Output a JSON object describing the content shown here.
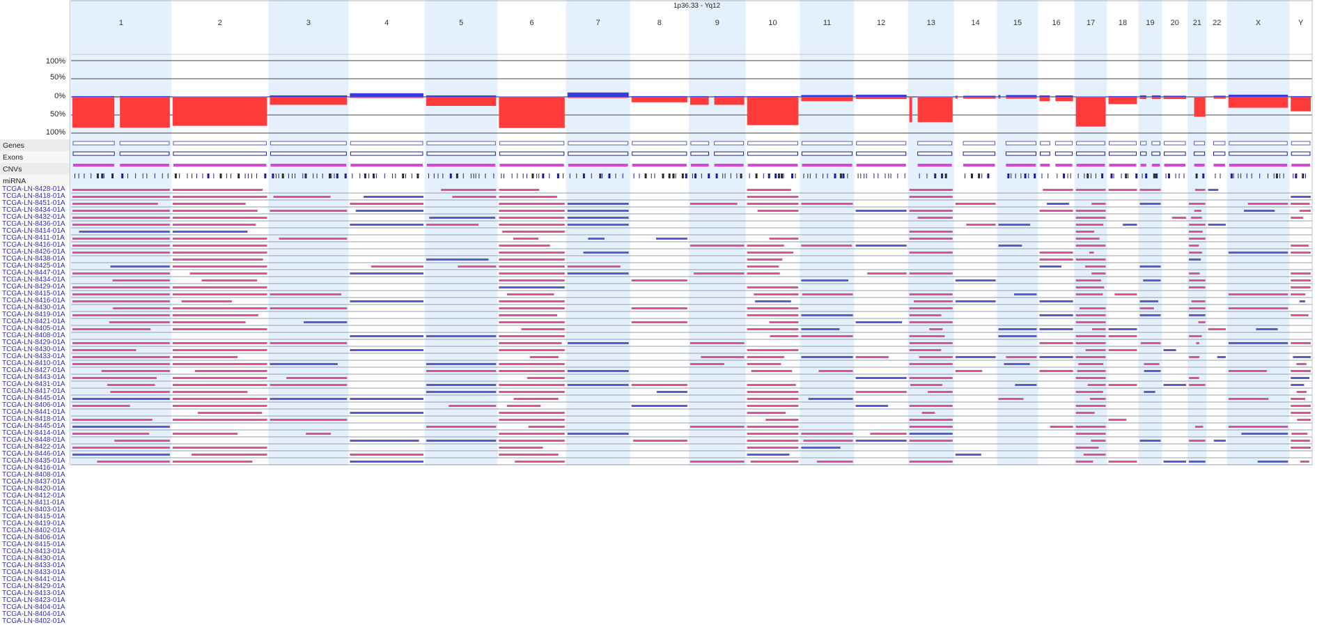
{
  "region_label": "1p36.33 - Yq12",
  "percent_ticks": [
    "100%",
    "50%",
    "0%",
    "50%",
    "100%"
  ],
  "tracks": [
    "Genes",
    "Exons",
    "CNVs",
    "miRNA"
  ],
  "chromosomes": [
    {
      "name": "1",
      "frac": 0.0808,
      "gain": 0.02,
      "loss": 0.85,
      "gap": 0.46
    },
    {
      "name": "2",
      "frac": 0.0784,
      "gain": 0.01,
      "loss": 0.8,
      "gap": null
    },
    {
      "name": "3",
      "frac": 0.0645,
      "gain": 0.04,
      "loss": 0.22,
      "gap": null
    },
    {
      "name": "4",
      "frac": 0.0616,
      "gain": 0.1,
      "loss": 0.03,
      "gap": null
    },
    {
      "name": "5",
      "frac": 0.0586,
      "gain": 0.04,
      "loss": 0.25,
      "gap": null
    },
    {
      "name": "6",
      "frac": 0.0553,
      "gain": 0.01,
      "loss": 0.86,
      "gap": null
    },
    {
      "name": "7",
      "frac": 0.0516,
      "gain": 0.12,
      "loss": 0.03,
      "gap": null
    },
    {
      "name": "8",
      "frac": 0.0473,
      "gain": 0.02,
      "loss": 0.15,
      "gap": null
    },
    {
      "name": "9",
      "frac": 0.0459,
      "gain": 0.02,
      "loss": 0.22,
      "gap": 0.4
    },
    {
      "name": "10",
      "frac": 0.0437,
      "gain": 0.02,
      "loss": 0.78,
      "gap": null
    },
    {
      "name": "11",
      "frac": 0.0439,
      "gain": 0.05,
      "loss": 0.12,
      "gap": null
    },
    {
      "name": "12",
      "frac": 0.0433,
      "gain": 0.06,
      "loss": 0.06,
      "gap": null
    },
    {
      "name": "13",
      "frac": 0.0371,
      "gain": 0.01,
      "loss": 0.7,
      "gap": 0.15
    },
    {
      "name": "14",
      "frac": 0.0347,
      "gain": 0.03,
      "loss": 0.05,
      "gap": 0.15
    },
    {
      "name": "15",
      "frac": 0.0331,
      "gain": 0.05,
      "loss": 0.05,
      "gap": 0.15
    },
    {
      "name": "16",
      "frac": 0.0293,
      "gain": 0.04,
      "loss": 0.12,
      "gap": 0.4
    },
    {
      "name": "17",
      "frac": 0.0263,
      "gain": 0.01,
      "loss": 0.82,
      "gap": null
    },
    {
      "name": "18",
      "frac": 0.0253,
      "gain": 0.02,
      "loss": 0.2,
      "gap": null
    },
    {
      "name": "19",
      "frac": 0.0191,
      "gain": 0.04,
      "loss": 0.06,
      "gap": 0.45
    },
    {
      "name": "20",
      "frac": 0.0205,
      "gain": 0.03,
      "loss": 0.06,
      "gap": null
    },
    {
      "name": "21",
      "frac": 0.0155,
      "gain": 0.01,
      "loss": 0.55,
      "gap": 0.2
    },
    {
      "name": "22",
      "frac": 0.0164,
      "gain": 0.03,
      "loss": 0.05,
      "gap": 0.2
    },
    {
      "name": "X",
      "frac": 0.0502,
      "gain": 0.06,
      "loss": 0.3,
      "gap": null
    },
    {
      "name": "Y",
      "frac": 0.0184,
      "gain": 0.02,
      "loss": 0.4,
      "gap": null
    }
  ],
  "samples": [
    "TCGA-LN-8428-01A",
    "TCGA-LN-8418-01A",
    "TCGA-LN-8451-01A",
    "TCGA-LN-8434-01A",
    "TCGA-LN-8432-01A",
    "TCGA-LN-8436-01A",
    "TCGA-LN-8414-01A",
    "TCGA-LN-8411-01A",
    "TCGA-LN-8416-01A",
    "TCGA-LN-8426-01A",
    "TCGA-LN-8438-01A",
    "TCGA-LN-8425-01A",
    "TCGA-LN-8447-01A",
    "TCGA-LN-8434-01A",
    "TCGA-LN-8429-01A",
    "TCGA-LN-8415-01A",
    "TCGA-LN-8416-01A",
    "TCGA-LN-8430-01A",
    "TCGA-LN-8419-01A",
    "TCGA-LN-8421-01A",
    "TCGA-LN-8405-01A",
    "TCGA-LN-8408-01A",
    "TCGA-LN-8429-01A",
    "TCGA-LN-8430-01A",
    "TCGA-LN-8433-01A",
    "TCGA-LN-8410-01A",
    "TCGA-LN-8427-01A",
    "TCGA-LN-8443-01A",
    "TCGA-LN-8431-01A",
    "TCGA-LN-8417-01A",
    "TCGA-LN-8445-01A",
    "TCGA-LN-8406-01A",
    "TCGA-LN-8441-01A",
    "TCGA-LN-8418-01A",
    "TCGA-LN-8445-01A",
    "TCGA-LN-8414-01A",
    "TCGA-LN-8448-01A",
    "TCGA-LN-8422-01A",
    "TCGA-LN-8446-01A",
    "TCGA-LN-8435-01A",
    "TCGA-LN-8416-01A",
    "TCGA-LN-8408-01A",
    "TCGA-LN-8437-01A",
    "TCGA-LN-8420-01A",
    "TCGA-LN-8412-01A",
    "TCGA-LN-8411-01A",
    "TCGA-LN-8403-01A",
    "TCGA-LN-8415-01A",
    "TCGA-LN-8419-01A",
    "TCGA-LN-8402-01A",
    "TCGA-LN-8406-01A",
    "TCGA-LN-8415-01A",
    "TCGA-LN-8413-01A",
    "TCGA-LN-8430-01A",
    "TCGA-LN-8433-01A",
    "TCGA-LN-8433-01A",
    "TCGA-LN-8441-01A",
    "TCGA-LN-8429-01A",
    "TCGA-LN-8413-01A",
    "TCGA-LN-8423-01A",
    "TCGA-LN-8404-01A",
    "TCGA-LN-8404-01A",
    "TCGA-LN-8402-01A"
  ],
  "colors": {
    "gain": "#3b3bdd",
    "loss": "#ff3b3b",
    "seg_loss": "#e0509a",
    "seg_gain": "#5a5ad6",
    "band": "#e4f1fc",
    "exon": "#d846d8",
    "gene_box": "#5b5bbb",
    "label_text": "#2c2ccc"
  }
}
